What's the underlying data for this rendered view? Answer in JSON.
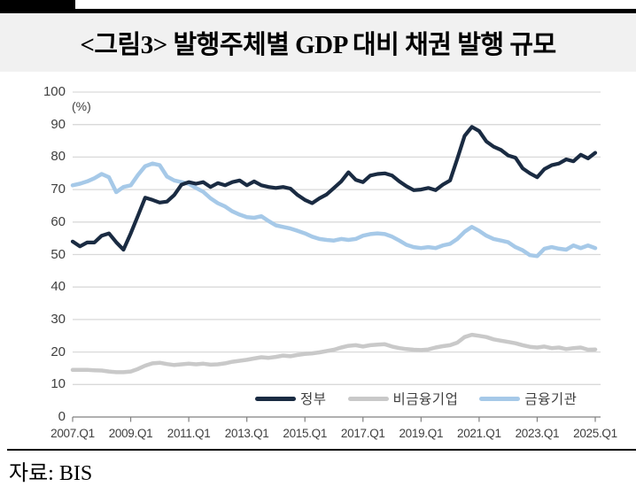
{
  "header": {
    "title": "<그림3> 발행주체별 GDP 대비 채권 발행 규모"
  },
  "source": {
    "text": "자료: BIS"
  },
  "colors": {
    "government_line": "#1a2b42",
    "nonfinancial_line": "#c9c9c9",
    "financial_line": "#a6c9e8",
    "gridline": "#d9d9d9",
    "axis": "#808080",
    "axis_text": "#3f3f3f",
    "banner_background": "#f1f1f1"
  },
  "chart_data": {
    "type": "line",
    "title": "발행주체별 GDP 대비 채권 발행 규모",
    "y_axis_unit_label": "(%)",
    "ylim": [
      0,
      100
    ],
    "y_ticks": [
      0,
      10,
      20,
      30,
      40,
      50,
      60,
      70,
      80,
      90,
      100
    ],
    "x_unit": "quarter",
    "x_range": [
      "2007.Q1",
      "2025.Q1"
    ],
    "x_tick_labels": [
      "2007.Q1",
      "2009.Q1",
      "2011.Q1",
      "2013.Q1",
      "2015.Q1",
      "2017.Q1",
      "2019.Q1",
      "2021.Q1",
      "2023.Q1",
      "2025.Q1"
    ],
    "grid": "horizontal",
    "legend_position": "inside-bottom-right",
    "series": [
      {
        "name": "정부",
        "color": "#1a2b42",
        "values": [
          54,
          52.5,
          53.7,
          53.7,
          55.8,
          56.5,
          53.8,
          51.5,
          56.5,
          62,
          67.5,
          66.8,
          66,
          66.3,
          68.3,
          71.5,
          72.3,
          71.8,
          72.3,
          70.8,
          72,
          71.3,
          72.3,
          72.8,
          71.3,
          72.5,
          71.3,
          70.8,
          70.5,
          70.8,
          70.3,
          68.3,
          66.8,
          65.8,
          67.3,
          68.5,
          70.5,
          72.5,
          75.3,
          73,
          72.3,
          74.3,
          74.8,
          75,
          74.3,
          72.5,
          71,
          69.8,
          70,
          70.5,
          69.8,
          71.5,
          72.8,
          79.5,
          86.5,
          89.3,
          88,
          84.8,
          83.2,
          82.2,
          80.5,
          79.8,
          76.5,
          75,
          73.8,
          76.3,
          77.5,
          78,
          79.3,
          78.7,
          80.7,
          79.6,
          81.3
        ]
      },
      {
        "name": "비금융기업",
        "color": "#c9c9c9",
        "values": [
          14.5,
          14.5,
          14.5,
          14.4,
          14.3,
          14,
          13.8,
          13.8,
          14,
          14.8,
          15.8,
          16.5,
          16.7,
          16.3,
          16,
          16.2,
          16.4,
          16.2,
          16.4,
          16.1,
          16.2,
          16.5,
          17,
          17.3,
          17.6,
          18,
          18.4,
          18.2,
          18.5,
          18.9,
          18.7,
          19.1,
          19.4,
          19.6,
          19.9,
          20.3,
          20.7,
          21.4,
          21.9,
          22.1,
          21.7,
          22.1,
          22.3,
          22.4,
          21.7,
          21.2,
          20.9,
          20.7,
          20.6,
          20.8,
          21.4,
          21.8,
          22.1,
          22.9,
          24.6,
          25.3,
          25,
          24.6,
          23.9,
          23.5,
          23.1,
          22.7,
          22.1,
          21.6,
          21.4,
          21.7,
          21.2,
          21.4,
          20.9,
          21.2,
          21.4,
          20.7,
          20.8
        ]
      },
      {
        "name": "금융기관",
        "color": "#a6c9e8",
        "values": [
          71.3,
          71.8,
          72.5,
          73.5,
          74.8,
          73.8,
          69.2,
          70.8,
          71.3,
          74.5,
          77.2,
          78,
          77.5,
          74,
          72.8,
          72.3,
          71.8,
          70.5,
          69.3,
          67.3,
          65.8,
          64.8,
          63.3,
          62.3,
          61.5,
          61.3,
          61.8,
          60.3,
          59,
          58.5,
          58,
          57.3,
          56.5,
          55.5,
          54.8,
          54.5,
          54.3,
          54.8,
          54.5,
          54.8,
          55.8,
          56.3,
          56.5,
          56.3,
          55.5,
          54.3,
          53,
          52.3,
          52,
          52.3,
          52,
          52.8,
          53.3,
          54.8,
          57,
          58.5,
          57.3,
          55.8,
          54.8,
          54.3,
          53.8,
          52.3,
          51.3,
          49.8,
          49.5,
          51.8,
          52.3,
          51.8,
          51.5,
          52.8,
          52,
          52.8,
          52
        ]
      }
    ]
  }
}
